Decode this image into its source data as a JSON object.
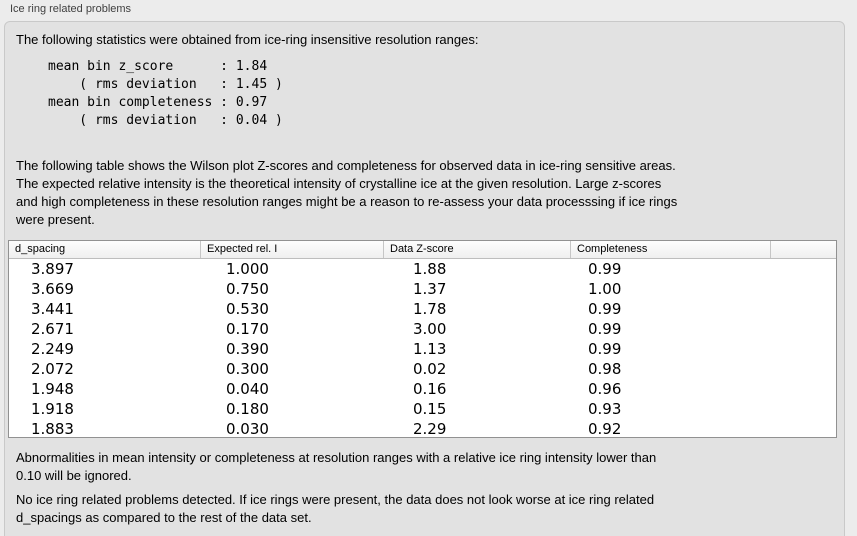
{
  "panel": {
    "title": "Ice ring related problems",
    "stats_intro": "The following statistics were obtained from ice-ring insensitive resolution ranges:",
    "stats_lines": "mean bin z_score      : 1.84\n    ( rms deviation   : 1.45 )\nmean bin completeness : 0.97\n    ( rms deviation   : 0.04 )",
    "table_description": "The following table shows the Wilson plot Z-scores and completeness for observed data in ice-ring sensitive areas.\nThe expected relative intensity is the theoretical intensity of crystalline ice at the given resolution. Large z-scores\nand high completeness in these resolution ranges might be a reason to re-assess your data processsing if ice rings\nwere present.",
    "ignore_note": "Abnormalities in mean intensity or completeness at resolution ranges with a relative ice ring intensity lower than\n0.10 will be ignored.",
    "conclusion": "No ice ring related problems detected. If ice rings were present, the data does not look worse at ice ring related\nd_spacings as compared to the rest of the data set."
  },
  "table": {
    "columns": [
      "d_spacing",
      "Expected rel. I",
      "Data Z-score",
      "Completeness"
    ],
    "rows": [
      [
        "3.897",
        "1.000",
        "1.88",
        "0.99"
      ],
      [
        "3.669",
        "0.750",
        "1.37",
        "1.00"
      ],
      [
        "3.441",
        "0.530",
        "1.78",
        "0.99"
      ],
      [
        "2.671",
        "0.170",
        "3.00",
        "0.99"
      ],
      [
        "2.249",
        "0.390",
        "1.13",
        "0.99"
      ],
      [
        "2.072",
        "0.300",
        "0.02",
        "0.98"
      ],
      [
        "1.948",
        "0.040",
        "0.16",
        "0.96"
      ],
      [
        "1.918",
        "0.180",
        "0.15",
        "0.93"
      ],
      [
        "1.883",
        "0.030",
        "2.29",
        "0.92"
      ]
    ]
  },
  "colors": {
    "window_bg": "#ececec",
    "panel_bg": "#e2e2e2",
    "panel_border": "#c9c9c9",
    "table_bg": "#ffffff",
    "table_border": "#919191",
    "header_top": "#fdfdfd",
    "header_bottom": "#efefef",
    "header_separator": "#c6c6c6",
    "header_underline": "#bdbdbd",
    "text": "#000000",
    "label_text": "#404040"
  }
}
